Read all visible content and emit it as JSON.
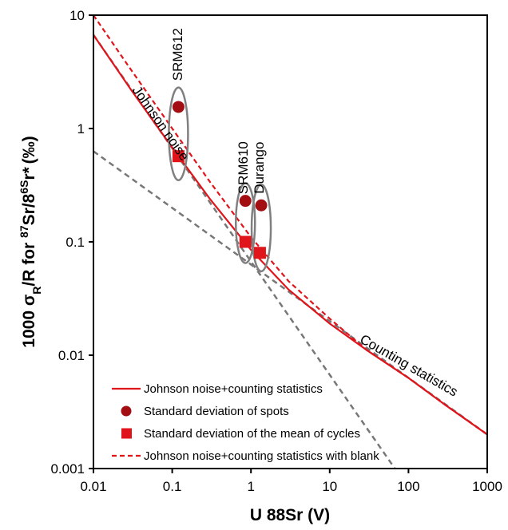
{
  "chart_data": {
    "type": "line",
    "title": "",
    "xlabel": "U 88Sr (V)",
    "ylabel": "1000 σR/R for 87Sr/86Sr* (‰)",
    "xscale": "log",
    "yscale": "log",
    "xlim": [
      0.01,
      1000
    ],
    "ylim": [
      0.001,
      10
    ],
    "x_ticks": [
      "0.01",
      "0.1",
      "1",
      "10",
      "100",
      "1000"
    ],
    "y_ticks": [
      "0.001",
      "0.01",
      "0.1",
      "1",
      "10"
    ],
    "grid": false,
    "legend_position": "bottom-left",
    "colors": {
      "model": "#e0141b",
      "spots": "#a30e12",
      "cycles": "#e0141b",
      "reference": "#777777",
      "ellipse": "#808080"
    },
    "series": [
      {
        "name": "Johnson noise+counting statistics",
        "style": "solid-line",
        "x": [
          0.01,
          0.03,
          0.1,
          0.3,
          1,
          3,
          10,
          30,
          100,
          300,
          1000
        ],
        "y": [
          6.7,
          2.2,
          0.68,
          0.24,
          0.085,
          0.038,
          0.019,
          0.011,
          0.0063,
          0.0036,
          0.002
        ]
      },
      {
        "name": "Standard deviation of spots",
        "style": "circle-marker",
        "x": [
          0.12,
          0.85,
          1.35
        ],
        "y": [
          1.55,
          0.23,
          0.21
        ]
      },
      {
        "name": "Standard deviation of the mean of cycles",
        "style": "square-marker",
        "x": [
          0.12,
          0.85,
          1.3
        ],
        "y": [
          0.57,
          0.1,
          0.08
        ]
      },
      {
        "name": "Johnson noise+counting statistics with blank",
        "style": "dashed-line",
        "x": [
          0.01,
          0.03,
          0.1,
          0.3,
          1,
          3,
          10,
          30,
          100,
          300,
          1000
        ],
        "y": [
          10,
          3.3,
          1.0,
          0.34,
          0.11,
          0.045,
          0.021,
          0.011,
          0.0063,
          0.0036,
          0.002
        ]
      }
    ],
    "reference_lines": [
      {
        "label": "Johnson noise",
        "style": "gray-dashed",
        "x": [
          0.01,
          70
        ],
        "y": [
          6.7,
          0.00096
        ]
      },
      {
        "label": "Counting statistics",
        "style": "gray-dashed",
        "x": [
          0.01,
          1000
        ],
        "y": [
          0.63,
          0.002
        ]
      }
    ],
    "annotations": [
      {
        "text": "SRM612",
        "x": 0.12,
        "y": 4.5,
        "rotation": -90
      },
      {
        "text": "SRM610",
        "x": 0.82,
        "y": 0.45,
        "rotation": -90
      },
      {
        "text": "Durango",
        "x": 1.3,
        "y": 0.45,
        "rotation": -90
      },
      {
        "text": "Johnson noise",
        "x": 0.07,
        "y": 1.1,
        "rotation": 55
      },
      {
        "text": "Counting statistics",
        "x": 100,
        "y": 0.008,
        "rotation": 30
      }
    ],
    "groups": [
      {
        "label": "SRM612",
        "x": 0.12,
        "y_range": [
          0.35,
          2.3
        ]
      },
      {
        "label": "SRM610",
        "x": 0.85,
        "y_range": [
          0.065,
          0.33
        ]
      },
      {
        "label": "Durango",
        "x": 1.35,
        "y_range": [
          0.055,
          0.32
        ]
      }
    ]
  }
}
